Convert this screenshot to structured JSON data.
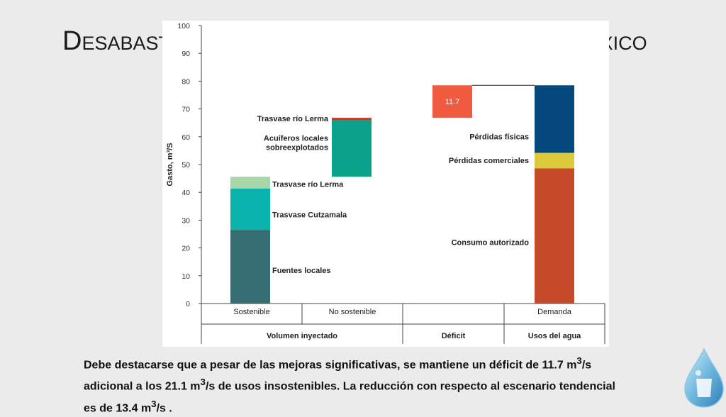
{
  "slide": {
    "title": "Desabastecimiento de agua en la Ciudad de México",
    "caption_parts": [
      "Debe destacarse que a pesar de las mejoras significativas, se mantiene un déficit de 11.7 m",
      "3",
      "/s adicional a los 21.1 m",
      "3",
      "/s  de usos insostenibles. La reducción con respecto al escenario tendencial es de 13.4 m",
      "3",
      "/s ."
    ]
  },
  "chart_data": {
    "type": "bar",
    "ylabel": "Gasto, m³/S",
    "ylim": [
      0,
      100
    ],
    "yticks": [
      0,
      10,
      20,
      30,
      40,
      50,
      60,
      70,
      80,
      90,
      100
    ],
    "categories": [
      "Sostenible",
      "No sostenible",
      "",
      "Demanda"
    ],
    "groups": [
      {
        "label": "Volumen inyectado",
        "categories": [
          0,
          1
        ]
      },
      {
        "label": "Déficit",
        "categories": [
          2
        ]
      },
      {
        "label": "Usos del agua",
        "categories": [
          3
        ]
      }
    ],
    "bars": [
      {
        "category": 0,
        "segments": [
          {
            "name": "Fuentes locales",
            "base": 0,
            "value": 26.5,
            "color": "#356f73"
          },
          {
            "name": "Trasvase Cutzamala",
            "base": 26.5,
            "value": 14.9,
            "color": "#0ab3ab"
          },
          {
            "name": "Trasvase río Lerma",
            "base": 41.4,
            "value": 4.2,
            "color": "#a7d7a8"
          }
        ]
      },
      {
        "category": 1,
        "segments": [
          {
            "name": "Acuíferos locales sobreexplotados",
            "base": 45.6,
            "value": 20.3,
            "color": "#0aa38a"
          },
          {
            "name": "Trasvase río Lerma",
            "base": 65.9,
            "value": 0.9,
            "color": "#c0392b"
          }
        ]
      },
      {
        "category": 2,
        "segments": [
          {
            "name": "",
            "base": 66.8,
            "value": 11.7,
            "color": "#f05a3f",
            "data_label": "11.7"
          }
        ]
      },
      {
        "category": 3,
        "segments": [
          {
            "name": "Consumo autorizado",
            "base": 0,
            "value": 48.6,
            "color": "#c44a2a"
          },
          {
            "name": "Pérdidas comerciales",
            "base": 48.6,
            "value": 5.6,
            "color": "#dcc93c"
          },
          {
            "name": "Pérdidas físicas",
            "base": 54.2,
            "value": 24.3,
            "color": "#05497c"
          }
        ]
      }
    ]
  }
}
